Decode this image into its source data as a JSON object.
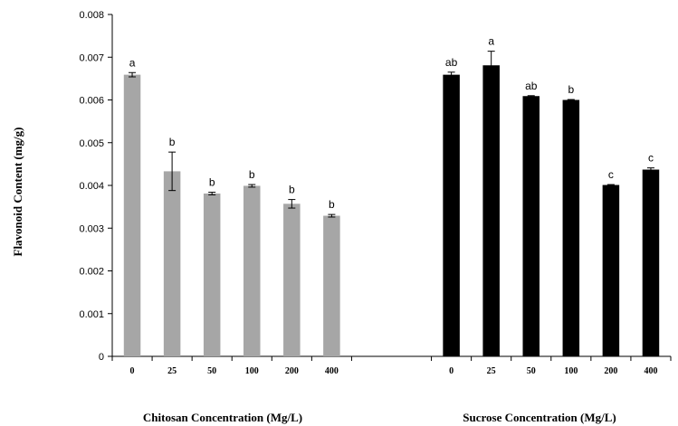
{
  "chart_data": {
    "type": "bar",
    "ylabel": "Flavonoid Content (mg/g)",
    "ylim": [
      0,
      0.008
    ],
    "y_ticks": [
      "0",
      "0.001",
      "0.002",
      "0.003",
      "0.004",
      "0.005",
      "0.006",
      "0.007",
      "0.008"
    ],
    "grid": false,
    "groups": [
      {
        "xlabel": "Chitosan Concentration (Mg/L)",
        "color": "#a6a6a6",
        "categories": [
          "0",
          "25",
          "50",
          "100",
          "200",
          "400"
        ],
        "values": [
          0.00659,
          0.00433,
          0.00381,
          0.00399,
          0.00357,
          0.00329
        ],
        "errors": [
          5e-05,
          0.00045,
          3e-05,
          3e-05,
          0.0001,
          3e-05
        ],
        "letters": [
          "a",
          "b",
          "b",
          "b",
          "b",
          "b"
        ]
      },
      {
        "xlabel": "Sucrose Concentration (Mg/L)",
        "color": "#000000",
        "categories": [
          "0",
          "25",
          "50",
          "100",
          "200",
          "400"
        ],
        "values": [
          0.00659,
          0.00681,
          0.00609,
          0.006,
          0.00401,
          0.00437
        ],
        "errors": [
          6e-05,
          0.00033,
          1e-05,
          1e-05,
          1e-05,
          4e-05
        ],
        "letters": [
          "ab",
          "a",
          "ab",
          "b",
          "c",
          "c"
        ]
      }
    ]
  }
}
